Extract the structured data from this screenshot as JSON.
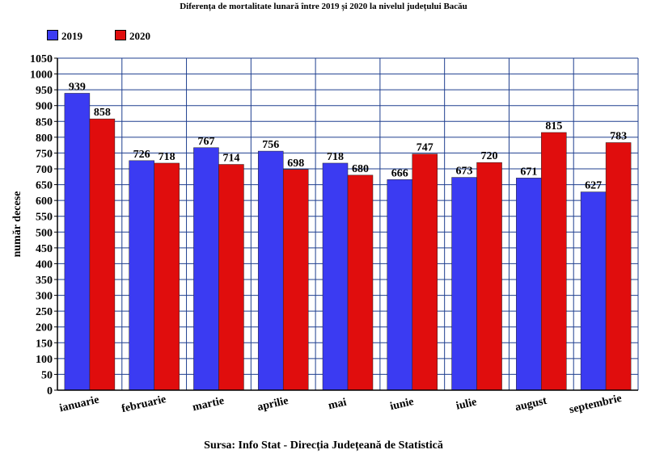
{
  "chart_data": {
    "type": "bar",
    "title": "Diferența de mortalitate lunară între 2019 și 2020 la nivelul județului Bacău",
    "ylabel": "număr decese",
    "xlabel": "",
    "categories": [
      "ianuarie",
      "februarie",
      "martie",
      "aprilie",
      "mai",
      "iunie",
      "iulie",
      "august",
      "septembrie"
    ],
    "series": [
      {
        "name": "2019",
        "color": "#3b3bf2",
        "values": [
          939,
          726,
          767,
          756,
          718,
          666,
          673,
          671,
          627
        ]
      },
      {
        "name": "2020",
        "color": "#e00d0d",
        "values": [
          858,
          718,
          714,
          698,
          680,
          747,
          720,
          815,
          783
        ]
      }
    ],
    "ylim": [
      0,
      1050
    ],
    "ytick_step": 50,
    "grid": true,
    "legend_position": "top-left",
    "data_labels": true,
    "plot_background": "#ffffff",
    "grid_color": "#1f3f8f"
  },
  "footer": {
    "source": "Sursa: Info Stat - Direcția Județeană de Statistică"
  }
}
